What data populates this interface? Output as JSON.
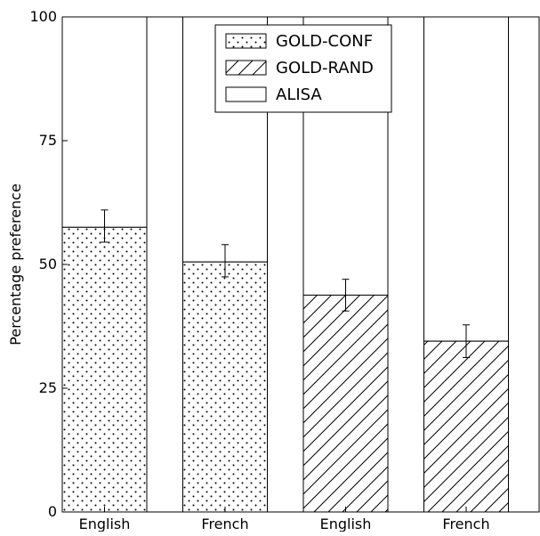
{
  "chart_data": {
    "type": "bar",
    "stacked": true,
    "categories": [
      "English",
      "French",
      "English",
      "French"
    ],
    "ylabel": "Percentage preference",
    "xlabel": "",
    "title": "",
    "ylim": [
      0,
      100
    ],
    "yticks": [
      0,
      25,
      50,
      75,
      100
    ],
    "grid": false,
    "legend_position": "top-center",
    "legend": [
      {
        "label": "GOLD-CONF",
        "pattern": "dots"
      },
      {
        "label": "GOLD-RAND",
        "pattern": "hatch"
      },
      {
        "label": "ALISA",
        "pattern": "none"
      }
    ],
    "bars": [
      {
        "category": "English",
        "series": "GOLD-CONF",
        "value": 57.5,
        "error": [
          54.5,
          61.0
        ]
      },
      {
        "category": "French",
        "series": "GOLD-CONF",
        "value": 50.5,
        "error": [
          47.5,
          54.0
        ]
      },
      {
        "category": "English",
        "series": "GOLD-RAND",
        "value": 43.8,
        "error": [
          40.6,
          47.0
        ]
      },
      {
        "category": "French",
        "series": "GOLD-RAND",
        "value": 34.5,
        "error": [
          31.2,
          37.8
        ]
      }
    ],
    "stack_top_series": "ALISA",
    "stack_total": 100
  }
}
